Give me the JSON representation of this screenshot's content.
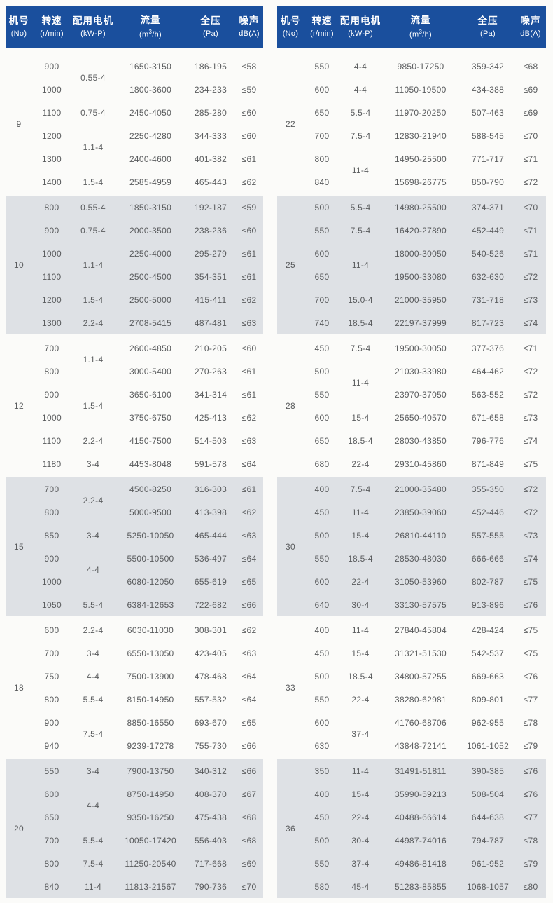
{
  "colors": {
    "header_bg": "#1a4f9d",
    "header_text": "#ffffff",
    "shaded_bg": "#dee1e5",
    "row_text": "#5a5c5e"
  },
  "columns": [
    {
      "key": "no",
      "zh": "机号",
      "unit": "(No)"
    },
    {
      "key": "speed",
      "zh": "转速",
      "unit": "(r/min)"
    },
    {
      "key": "motor",
      "zh": "配用电机",
      "unit": "(kW-P)"
    },
    {
      "key": "flow",
      "zh": "流量",
      "unit": "(m³/h)"
    },
    {
      "key": "pressure",
      "zh": "全压",
      "unit": "(Pa)"
    },
    {
      "key": "noise",
      "zh": "噪声",
      "unit": "dB(A)"
    }
  ],
  "tables": [
    {
      "id": "left",
      "groups": [
        {
          "no": "9",
          "shaded": false,
          "motors": [
            {
              "label": "0.55-4",
              "span": 2
            },
            {
              "label": "0.75-4",
              "span": 1
            },
            {
              "label": "1.1-4",
              "span": 2
            },
            {
              "label": "1.5-4",
              "span": 1
            }
          ],
          "rows": [
            {
              "speed": "900",
              "flow": "1650-3150",
              "pressure": "186-195",
              "noise": "≤58"
            },
            {
              "speed": "1000",
              "flow": "1800-3600",
              "pressure": "234-233",
              "noise": "≤59"
            },
            {
              "speed": "1100",
              "flow": "2450-4050",
              "pressure": "285-280",
              "noise": "≤60"
            },
            {
              "speed": "1200",
              "flow": "2250-4280",
              "pressure": "344-333",
              "noise": "≤60"
            },
            {
              "speed": "1300",
              "flow": "2400-4600",
              "pressure": "401-382",
              "noise": "≤61"
            },
            {
              "speed": "1400",
              "flow": "2585-4959",
              "pressure": "465-443",
              "noise": "≤62"
            }
          ]
        },
        {
          "no": "10",
          "shaded": true,
          "motors": [
            {
              "label": "0.55-4",
              "span": 1
            },
            {
              "label": "0.75-4",
              "span": 1
            },
            {
              "label": "1.1-4",
              "span": 2
            },
            {
              "label": "1.5-4",
              "span": 1
            },
            {
              "label": "2.2-4",
              "span": 1
            }
          ],
          "rows": [
            {
              "speed": "800",
              "flow": "1850-3150",
              "pressure": "192-187",
              "noise": "≤59"
            },
            {
              "speed": "900",
              "flow": "2000-3500",
              "pressure": "238-236",
              "noise": "≤60"
            },
            {
              "speed": "1000",
              "flow": "2250-4000",
              "pressure": "295-279",
              "noise": "≤61"
            },
            {
              "speed": "1100",
              "flow": "2500-4500",
              "pressure": "354-351",
              "noise": "≤61"
            },
            {
              "speed": "1200",
              "flow": "2500-5000",
              "pressure": "415-411",
              "noise": "≤62"
            },
            {
              "speed": "1300",
              "flow": "2708-5415",
              "pressure": "487-481",
              "noise": "≤63"
            }
          ]
        },
        {
          "no": "12",
          "shaded": false,
          "motors": [
            {
              "label": "1.1-4",
              "span": 2
            },
            {
              "label": "1.5-4",
              "span": 2
            },
            {
              "label": "2.2-4",
              "span": 1
            },
            {
              "label": "3-4",
              "span": 1
            }
          ],
          "rows": [
            {
              "speed": "700",
              "flow": "2600-4850",
              "pressure": "210-205",
              "noise": "≤60"
            },
            {
              "speed": "800",
              "flow": "3000-5400",
              "pressure": "270-263",
              "noise": "≤61"
            },
            {
              "speed": "900",
              "flow": "3650-6100",
              "pressure": "341-314",
              "noise": "≤61"
            },
            {
              "speed": "1000",
              "flow": "3750-6750",
              "pressure": "425-413",
              "noise": "≤62"
            },
            {
              "speed": "1100",
              "flow": "4150-7500",
              "pressure": "514-503",
              "noise": "≤63"
            },
            {
              "speed": "1180",
              "flow": "4453-8048",
              "pressure": "591-578",
              "noise": "≤64"
            }
          ]
        },
        {
          "no": "15",
          "shaded": true,
          "motors": [
            {
              "label": "2.2-4",
              "span": 2
            },
            {
              "label": "3-4",
              "span": 1
            },
            {
              "label": "4-4",
              "span": 2
            },
            {
              "label": "5.5-4",
              "span": 1
            }
          ],
          "rows": [
            {
              "speed": "700",
              "flow": "4500-8250",
              "pressure": "316-303",
              "noise": "≤61"
            },
            {
              "speed": "800",
              "flow": "5000-9500",
              "pressure": "413-398",
              "noise": "≤62"
            },
            {
              "speed": "850",
              "flow": "5250-10050",
              "pressure": "465-444",
              "noise": "≤63"
            },
            {
              "speed": "900",
              "flow": "5500-10500",
              "pressure": "536-497",
              "noise": "≤64"
            },
            {
              "speed": "1000",
              "flow": "6080-12050",
              "pressure": "655-619",
              "noise": "≤65"
            },
            {
              "speed": "1050",
              "flow": "6384-12653",
              "pressure": "722-682",
              "noise": "≤66"
            }
          ]
        },
        {
          "no": "18",
          "shaded": false,
          "motors": [
            {
              "label": "2.2-4",
              "span": 1
            },
            {
              "label": "3-4",
              "span": 1
            },
            {
              "label": "4-4",
              "span": 1
            },
            {
              "label": "5.5-4",
              "span": 1
            },
            {
              "label": "7.5-4",
              "span": 2
            }
          ],
          "rows": [
            {
              "speed": "600",
              "flow": "6030-11030",
              "pressure": "308-301",
              "noise": "≤62"
            },
            {
              "speed": "700",
              "flow": "6550-13050",
              "pressure": "423-405",
              "noise": "≤63"
            },
            {
              "speed": "750",
              "flow": "7500-13900",
              "pressure": "478-468",
              "noise": "≤64"
            },
            {
              "speed": "800",
              "flow": "8150-14950",
              "pressure": "557-532",
              "noise": "≤64"
            },
            {
              "speed": "900",
              "flow": "8850-16550",
              "pressure": "693-670",
              "noise": "≤65"
            },
            {
              "speed": "940",
              "flow": "9239-17278",
              "pressure": "755-730",
              "noise": "≤66"
            }
          ]
        },
        {
          "no": "20",
          "shaded": true,
          "motors": [
            {
              "label": "3-4",
              "span": 1
            },
            {
              "label": "4-4",
              "span": 2
            },
            {
              "label": "5.5-4",
              "span": 1
            },
            {
              "label": "7.5-4",
              "span": 1
            },
            {
              "label": "11-4",
              "span": 1
            }
          ],
          "rows": [
            {
              "speed": "550",
              "flow": "7900-13750",
              "pressure": "340-312",
              "noise": "≤66"
            },
            {
              "speed": "600",
              "flow": "8750-14950",
              "pressure": "408-370",
              "noise": "≤67"
            },
            {
              "speed": "650",
              "flow": "9350-16250",
              "pressure": "475-438",
              "noise": "≤68"
            },
            {
              "speed": "700",
              "flow": "10050-17420",
              "pressure": "556-403",
              "noise": "≤68"
            },
            {
              "speed": "800",
              "flow": "11250-20540",
              "pressure": "717-668",
              "noise": "≤69"
            },
            {
              "speed": "840",
              "flow": "11813-21567",
              "pressure": "790-736",
              "noise": "≤70"
            }
          ]
        }
      ]
    },
    {
      "id": "right",
      "groups": [
        {
          "no": "22",
          "shaded": false,
          "motors": [
            {
              "label": "4-4",
              "span": 1
            },
            {
              "label": "4-4",
              "span": 1
            },
            {
              "label": "5.5-4",
              "span": 1
            },
            {
              "label": "7.5-4",
              "span": 1
            },
            {
              "label": "11-4",
              "span": 2
            }
          ],
          "rows": [
            {
              "speed": "550",
              "flow": "9850-17250",
              "pressure": "359-342",
              "noise": "≤68"
            },
            {
              "speed": "600",
              "flow": "11050-19500",
              "pressure": "434-388",
              "noise": "≤69"
            },
            {
              "speed": "650",
              "flow": "11970-20250",
              "pressure": "507-463",
              "noise": "≤69"
            },
            {
              "speed": "700",
              "flow": "12830-21940",
              "pressure": "588-545",
              "noise": "≤70"
            },
            {
              "speed": "800",
              "flow": "14950-25500",
              "pressure": "771-717",
              "noise": "≤71"
            },
            {
              "speed": "840",
              "flow": "15698-26775",
              "pressure": "850-790",
              "noise": "≤72"
            }
          ]
        },
        {
          "no": "25",
          "shaded": true,
          "motors": [
            {
              "label": "5.5-4",
              "span": 1
            },
            {
              "label": "7.5-4",
              "span": 1
            },
            {
              "label": "11-4",
              "span": 2
            },
            {
              "label": "15.0-4",
              "span": 1
            },
            {
              "label": "18.5-4",
              "span": 1
            }
          ],
          "rows": [
            {
              "speed": "500",
              "flow": "14980-25500",
              "pressure": "374-371",
              "noise": "≤70"
            },
            {
              "speed": "550",
              "flow": "16420-27890",
              "pressure": "452-449",
              "noise": "≤71"
            },
            {
              "speed": "600",
              "flow": "18000-30050",
              "pressure": "540-526",
              "noise": "≤71"
            },
            {
              "speed": "650",
              "flow": "19500-33080",
              "pressure": "632-630",
              "noise": "≤72"
            },
            {
              "speed": "700",
              "flow": "21000-35950",
              "pressure": "731-718",
              "noise": "≤73"
            },
            {
              "speed": "740",
              "flow": "22197-37999",
              "pressure": "817-723",
              "noise": "≤74"
            }
          ]
        },
        {
          "no": "28",
          "shaded": false,
          "motors": [
            {
              "label": "7.5-4",
              "span": 1
            },
            {
              "label": "11-4",
              "span": 2
            },
            {
              "label": "15-4",
              "span": 1
            },
            {
              "label": "18.5-4",
              "span": 1
            },
            {
              "label": "22-4",
              "span": 1
            }
          ],
          "rows": [
            {
              "speed": "450",
              "flow": "19500-30050",
              "pressure": "377-376",
              "noise": "≤71"
            },
            {
              "speed": "500",
              "flow": "21030-33980",
              "pressure": "464-462",
              "noise": "≤72"
            },
            {
              "speed": "550",
              "flow": "23970-37050",
              "pressure": "563-552",
              "noise": "≤72"
            },
            {
              "speed": "600",
              "flow": "25650-40570",
              "pressure": "671-658",
              "noise": "≤73"
            },
            {
              "speed": "650",
              "flow": "28030-43850",
              "pressure": "796-776",
              "noise": "≤74"
            },
            {
              "speed": "680",
              "flow": "29310-45860",
              "pressure": "871-849",
              "noise": "≤75"
            }
          ]
        },
        {
          "no": "30",
          "shaded": true,
          "motors": [
            {
              "label": "7.5-4",
              "span": 1
            },
            {
              "label": "11-4",
              "span": 1
            },
            {
              "label": "15-4",
              "span": 1
            },
            {
              "label": "18.5-4",
              "span": 1
            },
            {
              "label": "22-4",
              "span": 1
            },
            {
              "label": "30-4",
              "span": 1
            }
          ],
          "rows": [
            {
              "speed": "400",
              "flow": "21000-35480",
              "pressure": "355-350",
              "noise": "≤72"
            },
            {
              "speed": "450",
              "flow": "23850-39060",
              "pressure": "452-446",
              "noise": "≤72"
            },
            {
              "speed": "500",
              "flow": "26810-44110",
              "pressure": "557-555",
              "noise": "≤73"
            },
            {
              "speed": "550",
              "flow": "28530-48030",
              "pressure": "666-666",
              "noise": "≤74"
            },
            {
              "speed": "600",
              "flow": "31050-53960",
              "pressure": "802-787",
              "noise": "≤75"
            },
            {
              "speed": "640",
              "flow": "33130-57575",
              "pressure": "913-896",
              "noise": "≤76"
            }
          ]
        },
        {
          "no": "33",
          "shaded": false,
          "motors": [
            {
              "label": "11-4",
              "span": 1
            },
            {
              "label": "15-4",
              "span": 1
            },
            {
              "label": "18.5-4",
              "span": 1
            },
            {
              "label": "22-4",
              "span": 1
            },
            {
              "label": "37-4",
              "span": 2
            }
          ],
          "rows": [
            {
              "speed": "400",
              "flow": "27840-45804",
              "pressure": "428-424",
              "noise": "≤75"
            },
            {
              "speed": "450",
              "flow": "31321-51530",
              "pressure": "542-537",
              "noise": "≤75"
            },
            {
              "speed": "500",
              "flow": "34800-57255",
              "pressure": "669-663",
              "noise": "≤76"
            },
            {
              "speed": "550",
              "flow": "38280-62981",
              "pressure": "809-801",
              "noise": "≤77"
            },
            {
              "speed": "600",
              "flow": "41760-68706",
              "pressure": "962-955",
              "noise": "≤78"
            },
            {
              "speed": "630",
              "flow": "43848-72141",
              "pressure": "1061-1052",
              "noise": "≤79"
            }
          ]
        },
        {
          "no": "36",
          "shaded": true,
          "motors": [
            {
              "label": "11-4",
              "span": 1
            },
            {
              "label": "15-4",
              "span": 1
            },
            {
              "label": "22-4",
              "span": 1
            },
            {
              "label": "30-4",
              "span": 1
            },
            {
              "label": "37-4",
              "span": 1
            },
            {
              "label": "45-4",
              "span": 1
            }
          ],
          "rows": [
            {
              "speed": "350",
              "flow": "31491-51811",
              "pressure": "390-385",
              "noise": "≤76"
            },
            {
              "speed": "400",
              "flow": "35990-59213",
              "pressure": "508-504",
              "noise": "≤76"
            },
            {
              "speed": "450",
              "flow": "40488-66614",
              "pressure": "644-638",
              "noise": "≤77"
            },
            {
              "speed": "500",
              "flow": "44987-74016",
              "pressure": "794-787",
              "noise": "≤78"
            },
            {
              "speed": "550",
              "flow": "49486-81418",
              "pressure": "961-952",
              "noise": "≤79"
            },
            {
              "speed": "580",
              "flow": "51283-85855",
              "pressure": "1068-1057",
              "noise": "≤80"
            }
          ]
        }
      ]
    }
  ]
}
